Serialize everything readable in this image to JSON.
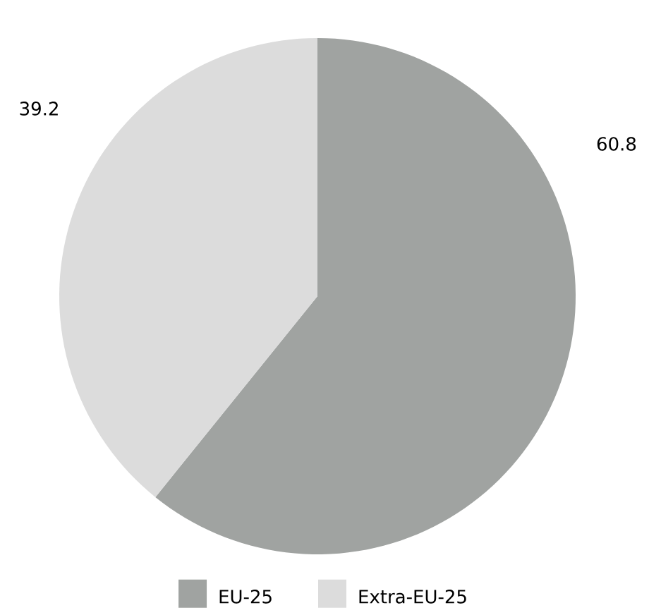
{
  "chart_data": {
    "type": "pie",
    "categories": [
      "EU-25",
      "Extra-EU-25"
    ],
    "values": [
      60.8,
      39.2
    ],
    "colors": [
      "#a0a3a1",
      "#dcdcdc"
    ],
    "data_labels": true,
    "legend": "bottom"
  }
}
